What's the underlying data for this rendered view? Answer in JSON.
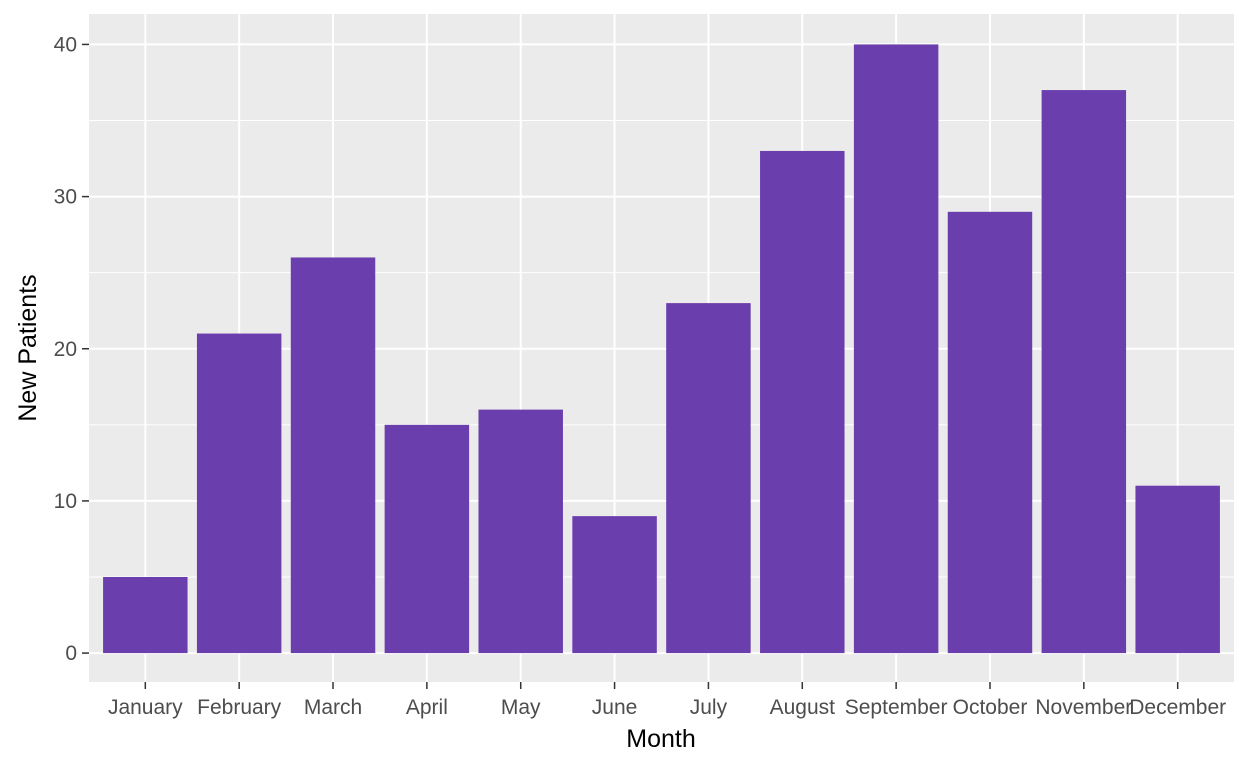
{
  "chart_data": {
    "type": "bar",
    "categories": [
      "January",
      "February",
      "March",
      "April",
      "May",
      "June",
      "July",
      "August",
      "September",
      "October",
      "November",
      "December"
    ],
    "values": [
      5,
      21,
      26,
      15,
      16,
      9,
      23,
      33,
      40,
      29,
      37,
      11
    ],
    "title": "",
    "xlabel": "Month",
    "ylabel": "New Patients",
    "ylim": [
      -1.9,
      42
    ],
    "yticks": [
      0,
      10,
      20,
      30,
      40
    ],
    "grid": true,
    "colors": {
      "bar": "#6a3eac",
      "panel": "#ebebeb",
      "grid_major": "#ffffff",
      "tick_text": "#4d4d4d"
    }
  }
}
